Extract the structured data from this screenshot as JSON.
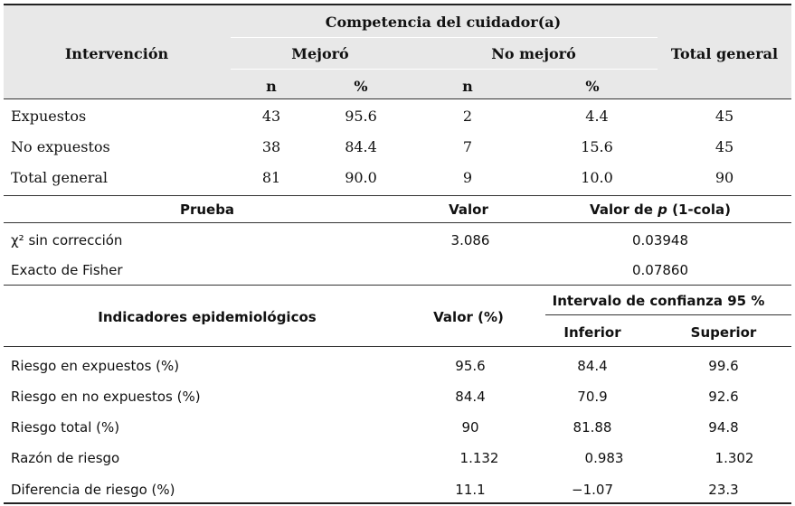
{
  "table1": {
    "group_header": "Competencia del cuidador(a)",
    "col_intervencion": "Intervención",
    "col_mejoro": "Mejoró",
    "col_no_mejoro": "No mejoró",
    "col_total": "Total general",
    "sub_n1": "n",
    "sub_pct1": "%",
    "sub_n2": "n",
    "sub_pct2": "%",
    "rows": [
      {
        "label": "Expuestos",
        "n1": "43",
        "p1": "95.6",
        "n2": "2",
        "p2": "4.4",
        "total": "45"
      },
      {
        "label": "No expuestos",
        "n1": "38",
        "p1": "84.4",
        "n2": "7",
        "p2": "15.6",
        "total": "45"
      },
      {
        "label": "Total general",
        "n1": "81",
        "p1": "90.0",
        "n2": "9",
        "p2": "10.0",
        "total": "90"
      }
    ]
  },
  "table2": {
    "col_prueba": "Prueba",
    "col_valor": "Valor",
    "col_p_prefix": "Valor de ",
    "col_p_var": "p",
    "col_p_suffix": " (1-cola)",
    "rows": [
      {
        "label": "χ² sin corrección",
        "valor": "3.086",
        "p": "0.03948"
      },
      {
        "label": "Exacto de Fisher",
        "valor": "",
        "p": "0.07860"
      }
    ]
  },
  "table3": {
    "col_indicadores": "Indicadores epidemiológicos",
    "col_valor": "Valor (%)",
    "col_ic": "Intervalo de confianza 95 %",
    "col_inferior": "Inferior",
    "col_superior": "Superior",
    "rows": [
      {
        "label": "Riesgo en expuestos (%)",
        "valor": "95.6",
        "inf": "84.4",
        "sup": "99.6"
      },
      {
        "label": "Riesgo en no expuestos (%)",
        "valor": "84.4",
        "inf": "70.9",
        "sup": "92.6"
      },
      {
        "label": "Riesgo total (%)",
        "valor": "90",
        "inf": "81.88",
        "sup": "94.8"
      },
      {
        "label": "Razón de riesgo",
        "valor": "1.132",
        "inf": "0.983",
        "sup": "1.302"
      },
      {
        "label": "Diferencia de riesgo (%)",
        "valor": "11.1",
        "inf": "−1.07",
        "sup": "23.3"
      }
    ]
  }
}
